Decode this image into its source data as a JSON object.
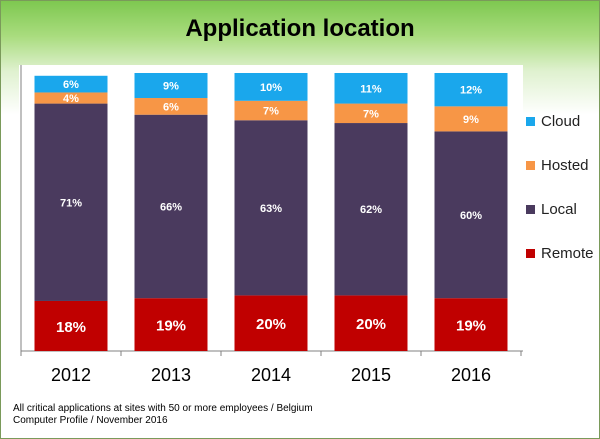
{
  "title": "Application location",
  "footnote": {
    "line1": "All critical applications at sites with 50 or more employees / Belgium",
    "line2": "Computer Profile / November 2016"
  },
  "colors": {
    "Remote": "#c00000",
    "Local": "#4a3a5e",
    "Hosted": "#f79646",
    "Cloud": "#1aa7ec"
  },
  "chart_data": {
    "type": "bar",
    "stacked": true,
    "categories": [
      "2012",
      "2013",
      "2014",
      "2015",
      "2016"
    ],
    "series": [
      {
        "name": "Remote",
        "values": [
          18,
          19,
          20,
          20,
          19
        ]
      },
      {
        "name": "Local",
        "values": [
          71,
          66,
          63,
          62,
          60
        ]
      },
      {
        "name": "Hosted",
        "values": [
          4,
          6,
          7,
          7,
          9
        ]
      },
      {
        "name": "Cloud",
        "values": [
          6,
          9,
          10,
          11,
          12
        ]
      }
    ],
    "unit": "%",
    "ylim": [
      0,
      100
    ],
    "legend_position": "right",
    "legend_order": [
      "Cloud",
      "Hosted",
      "Local",
      "Remote"
    ],
    "grid": false
  }
}
